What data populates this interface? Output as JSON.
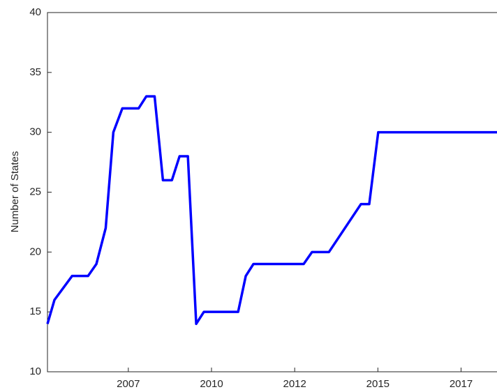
{
  "chart_data": {
    "type": "line",
    "y_label": "Number of States",
    "x": [
      2005.07,
      2005.28,
      2005.81,
      2006.29,
      2006.54,
      2006.82,
      2007.05,
      2007.32,
      2007.81,
      2008.04,
      2008.29,
      2008.54,
      2008.81,
      2009.04,
      2009.29,
      2009.54,
      2009.77,
      2010.8,
      2011.03,
      2011.26,
      2012.77,
      2013.02,
      2013.53,
      2014.49,
      2014.74,
      2015.01,
      2018.58
    ],
    "series": [
      {
        "color": "#0000ff",
        "values": [
          14,
          16,
          18,
          18,
          19,
          22,
          30,
          32,
          32,
          33,
          33,
          26,
          26,
          28,
          28,
          14,
          15,
          15,
          18,
          19,
          19,
          20,
          20,
          24,
          24,
          30,
          30
        ]
      }
    ],
    "xlim": [
      2005.07,
      2018.58
    ],
    "xticks": [
      {
        "value": 2007.5,
        "label": "2007"
      },
      {
        "value": 2010,
        "label": "2010"
      },
      {
        "value": 2012.5,
        "label": "2012"
      },
      {
        "value": 2015,
        "label": "2015"
      },
      {
        "value": 2017.5,
        "label": "2017"
      }
    ],
    "ylim": [
      10,
      40
    ],
    "yticks": [
      10,
      15,
      20,
      25,
      30,
      35,
      40
    ]
  }
}
